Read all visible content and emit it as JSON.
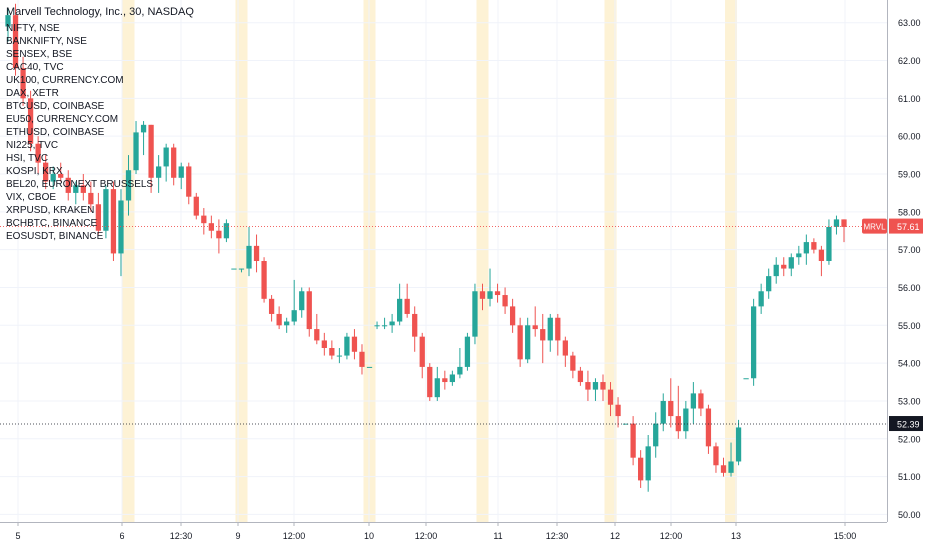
{
  "chart_data": {
    "type": "candlestick",
    "title": "Marvell Technology, Inc., 30, NASDAQ",
    "symbol_tag": "MRVL",
    "last_price": "57.61",
    "marker_price": "52.39",
    "ylim": [
      49.8,
      63.6
    ],
    "y_ticks": [
      "50.00",
      "51.00",
      "52.00",
      "53.00",
      "54.00",
      "55.00",
      "56.00",
      "57.00",
      "58.00",
      "59.00",
      "60.00",
      "61.00",
      "62.00",
      "63.00"
    ],
    "x_ticks": [
      "5",
      "6",
      "12:30",
      "9",
      "12:00",
      "10",
      "12:00",
      "11",
      "12:30",
      "12",
      "12:00",
      "13",
      "15:00"
    ],
    "session_bands": [
      6,
      9,
      10,
      11,
      12,
      13
    ],
    "overlay_symbols": [
      "NIFTY, NSE",
      "BANKNIFTY, NSE",
      "SENSEX, BSE",
      "CAC40, TVC",
      "UK100, CURRENCY.COM",
      "DAX, XETR",
      "BTCUSD, COINBASE",
      "EU50, CURRENCY.COM",
      "ETHUSD, COINBASE",
      "NI225, TVC",
      "HSI, TVC",
      "KOSPI, KRX",
      "BEL20, EURONEXT BRUSSELS",
      "VIX, CBOE",
      "XRPUSD, KRAKEN",
      "BCHBTC, BINANCE",
      "EOSUSDT, BINANCE"
    ],
    "candles": [
      [
        62.9,
        63.4,
        62.5,
        63.2
      ],
      [
        63.2,
        63.5,
        61.6,
        61.8
      ],
      [
        61.8,
        62.1,
        60.8,
        61.0
      ],
      [
        61.0,
        61.2,
        59.6,
        59.8
      ],
      [
        59.8,
        60.0,
        59.0,
        59.3
      ],
      [
        59.3,
        59.5,
        58.6,
        58.8
      ],
      [
        58.8,
        59.2,
        58.6,
        59.0
      ],
      [
        59.0,
        59.3,
        58.8,
        58.9
      ],
      [
        58.9,
        59.1,
        58.3,
        58.5
      ],
      [
        58.5,
        58.8,
        58.2,
        58.7
      ],
      [
        58.7,
        59.0,
        58.3,
        58.5
      ],
      [
        58.5,
        58.8,
        58.0,
        58.2
      ],
      [
        58.2,
        58.5,
        57.4,
        57.5
      ],
      [
        57.5,
        58.7,
        57.3,
        58.6
      ],
      [
        58.6,
        58.8,
        56.7,
        56.9
      ],
      [
        56.9,
        58.6,
        56.3,
        58.3
      ],
      [
        58.3,
        59.5,
        57.9,
        59.1
      ],
      [
        59.1,
        60.4,
        59.0,
        60.1
      ],
      [
        60.1,
        60.4,
        59.5,
        60.3
      ],
      [
        60.3,
        60.3,
        58.5,
        58.9
      ],
      [
        58.9,
        59.5,
        58.5,
        59.2
      ],
      [
        59.2,
        59.8,
        58.8,
        59.7
      ],
      [
        59.7,
        59.8,
        58.7,
        58.9
      ],
      [
        58.9,
        59.3,
        58.6,
        59.2
      ],
      [
        59.2,
        59.3,
        58.2,
        58.4
      ],
      [
        58.4,
        58.5,
        57.8,
        57.9
      ],
      [
        57.9,
        58.1,
        57.4,
        57.7
      ],
      [
        57.7,
        57.9,
        57.3,
        57.5
      ],
      [
        57.5,
        57.8,
        56.9,
        57.3
      ],
      [
        57.3,
        57.8,
        57.2,
        57.7
      ],
      [
        56.5,
        56.5,
        56.5,
        56.5
      ],
      [
        56.5,
        56.5,
        56.4,
        56.5
      ],
      [
        56.5,
        57.6,
        56.3,
        57.1
      ],
      [
        57.1,
        57.4,
        56.4,
        56.7
      ],
      [
        56.7,
        56.8,
        55.6,
        55.7
      ],
      [
        55.7,
        55.8,
        55.1,
        55.3
      ],
      [
        55.3,
        55.5,
        54.9,
        55.0
      ],
      [
        55.0,
        55.2,
        54.8,
        55.1
      ],
      [
        55.1,
        56.2,
        55.0,
        55.4
      ],
      [
        55.4,
        56.0,
        55.2,
        55.9
      ],
      [
        55.9,
        56.0,
        54.7,
        54.9
      ],
      [
        54.9,
        55.3,
        54.5,
        54.6
      ],
      [
        54.6,
        54.8,
        54.2,
        54.4
      ],
      [
        54.4,
        54.6,
        54.1,
        54.2
      ],
      [
        54.2,
        54.4,
        54.0,
        54.2
      ],
      [
        54.2,
        54.8,
        54.1,
        54.7
      ],
      [
        54.7,
        54.9,
        54.1,
        54.3
      ],
      [
        54.3,
        54.5,
        53.7,
        53.9
      ],
      [
        53.9,
        53.9,
        53.9,
        53.9
      ],
      [
        55.0,
        55.1,
        54.9,
        55.0
      ],
      [
        55.0,
        55.2,
        54.9,
        55.0
      ],
      [
        55.0,
        55.3,
        54.8,
        55.1
      ],
      [
        55.1,
        56.1,
        55.0,
        55.7
      ],
      [
        55.7,
        56.1,
        55.2,
        55.3
      ],
      [
        55.3,
        55.5,
        54.3,
        54.7
      ],
      [
        54.7,
        54.8,
        53.6,
        53.9
      ],
      [
        53.9,
        54.0,
        53.0,
        53.1
      ],
      [
        53.1,
        53.9,
        53.0,
        53.6
      ],
      [
        53.6,
        53.8,
        53.3,
        53.5
      ],
      [
        53.5,
        53.8,
        53.4,
        53.7
      ],
      [
        53.7,
        54.4,
        53.6,
        53.9
      ],
      [
        53.9,
        54.8,
        53.8,
        54.7
      ],
      [
        54.7,
        56.1,
        54.5,
        55.9
      ],
      [
        55.9,
        56.1,
        55.4,
        55.7
      ],
      [
        55.7,
        56.5,
        55.5,
        55.9
      ],
      [
        55.9,
        56.1,
        55.6,
        55.8
      ],
      [
        55.8,
        56.0,
        55.3,
        55.5
      ],
      [
        55.5,
        55.7,
        54.8,
        55.0
      ],
      [
        55.0,
        55.2,
        53.9,
        54.1
      ],
      [
        54.1,
        55.2,
        54.0,
        55.0
      ],
      [
        55.0,
        55.5,
        54.7,
        54.9
      ],
      [
        54.9,
        55.3,
        54.0,
        54.6
      ],
      [
        54.6,
        55.3,
        54.3,
        55.2
      ],
      [
        55.2,
        55.3,
        54.2,
        54.6
      ],
      [
        54.6,
        54.7,
        53.9,
        54.2
      ],
      [
        54.2,
        54.3,
        53.6,
        53.8
      ],
      [
        53.8,
        53.9,
        53.4,
        53.5
      ],
      [
        53.5,
        53.8,
        53.0,
        53.3
      ],
      [
        53.3,
        53.6,
        53.0,
        53.5
      ],
      [
        53.5,
        53.7,
        53.0,
        53.3
      ],
      [
        53.3,
        53.5,
        52.6,
        52.9
      ],
      [
        52.9,
        53.1,
        52.3,
        52.6
      ],
      [
        52.4,
        52.4,
        52.4,
        52.4
      ],
      [
        52.4,
        52.6,
        51.3,
        51.5
      ],
      [
        51.5,
        51.7,
        50.7,
        50.9
      ],
      [
        50.9,
        52.1,
        50.6,
        51.8
      ],
      [
        51.8,
        52.7,
        51.5,
        52.4
      ],
      [
        52.4,
        53.2,
        52.2,
        53.0
      ],
      [
        53.0,
        53.6,
        52.3,
        52.6
      ],
      [
        52.6,
        53.4,
        52.0,
        52.2
      ],
      [
        52.2,
        53.0,
        52.0,
        52.8
      ],
      [
        52.8,
        53.5,
        52.4,
        53.2
      ],
      [
        53.2,
        53.3,
        52.6,
        52.8
      ],
      [
        52.8,
        52.9,
        51.6,
        51.8
      ],
      [
        51.8,
        51.9,
        51.1,
        51.3
      ],
      [
        51.3,
        51.5,
        51.0,
        51.1
      ],
      [
        51.1,
        51.9,
        51.0,
        51.4
      ],
      [
        51.4,
        52.5,
        51.3,
        52.3
      ],
      [
        53.6,
        53.6,
        53.6,
        53.6
      ],
      [
        53.6,
        55.7,
        53.4,
        55.5
      ],
      [
        55.5,
        56.1,
        55.3,
        55.9
      ],
      [
        55.9,
        56.5,
        55.7,
        56.3
      ],
      [
        56.3,
        56.8,
        56.1,
        56.6
      ],
      [
        56.6,
        56.8,
        56.3,
        56.5
      ],
      [
        56.5,
        56.9,
        56.3,
        56.8
      ],
      [
        56.8,
        57.1,
        56.6,
        56.9
      ],
      [
        56.9,
        57.4,
        56.6,
        57.2
      ],
      [
        57.2,
        57.3,
        56.9,
        57.0
      ],
      [
        57.0,
        57.1,
        56.3,
        56.7
      ],
      [
        56.7,
        57.8,
        56.6,
        57.6
      ],
      [
        57.6,
        57.9,
        57.4,
        57.8
      ],
      [
        57.8,
        57.8,
        57.2,
        57.6
      ]
    ]
  }
}
